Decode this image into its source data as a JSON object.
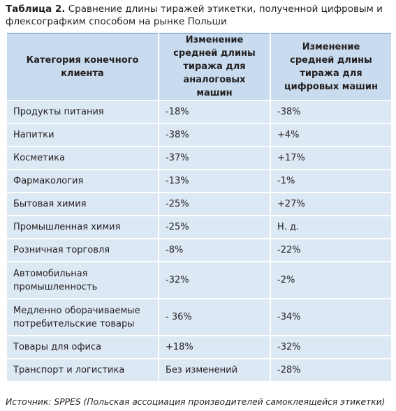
{
  "header": {
    "label": "Таблица 2.",
    "title": "Сравнение длины тиражей этикетки, полученной цифровым и флексографким способом на рынке Польши"
  },
  "table": {
    "columns": [
      "Категория конечного клиента",
      "Изменение средней длины тиража для аналоговых машин",
      "Изменение средней длины тиража для цифровых машин"
    ],
    "rows": [
      [
        "Продукты питания",
        "-18%",
        "-38%"
      ],
      [
        "Напитки",
        "-38%",
        "+4%"
      ],
      [
        "Косметика",
        "-37%",
        "+17%"
      ],
      [
        "Фармакология",
        "-13%",
        "-1%"
      ],
      [
        "Бытовая химия",
        "-25%",
        "+27%"
      ],
      [
        "Промышленная химия",
        "-25%",
        "Н. д."
      ],
      [
        "Розничная торговля",
        "-8%",
        "-22%"
      ],
      [
        "Автомобильная промышленность",
        "-32%",
        "-2%"
      ],
      [
        "Медленно оборачиваемые потребительские товары",
        "- 36%",
        "-34%"
      ],
      [
        "Товары для офиса",
        "+18%",
        "-32%"
      ],
      [
        "Транспорт и логистика",
        "Без изменений",
        "-28%"
      ]
    ]
  },
  "footer": {
    "source": "Источник: SPPES (Польская ассоциация производителей самоклеящейся этикетки)"
  }
}
